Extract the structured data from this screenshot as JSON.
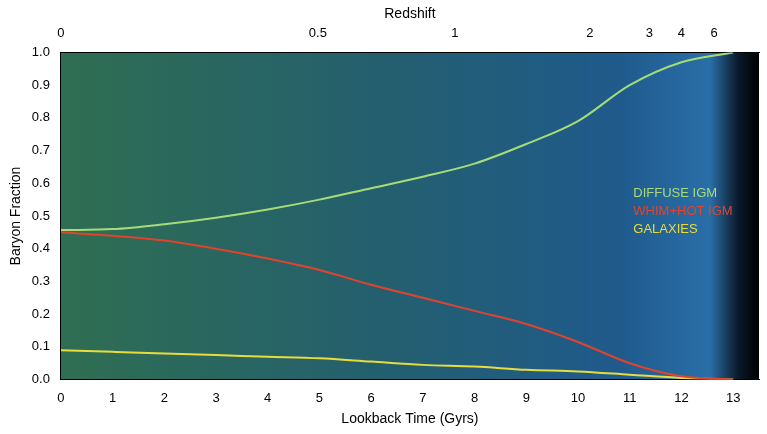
{
  "chart_data": {
    "type": "line",
    "x_title": "Lookback Time (Gyrs)",
    "y_title": "Baryon Fraction",
    "x": [
      0,
      1,
      2,
      3,
      4,
      5,
      6,
      7,
      8,
      9,
      10,
      11,
      12,
      13
    ],
    "series": [
      {
        "name": "DIFFUSE IGM",
        "color": "#a6dc78",
        "values": [
          0.457,
          0.46,
          0.475,
          0.495,
          0.52,
          0.55,
          0.585,
          0.62,
          0.66,
          0.72,
          0.79,
          0.9,
          0.97,
          1.0
        ]
      },
      {
        "name": "WHIM+HOT IGM",
        "color": "#e0442c",
        "values": [
          0.45,
          0.44,
          0.425,
          0.4,
          0.37,
          0.335,
          0.29,
          0.25,
          0.21,
          0.17,
          0.115,
          0.05,
          0.01,
          0.0
        ]
      },
      {
        "name": "GALAXIES",
        "color": "#e8dc3c",
        "values": [
          0.09,
          0.085,
          0.08,
          0.075,
          0.07,
          0.065,
          0.055,
          0.045,
          0.04,
          0.03,
          0.025,
          0.015,
          0.005,
          0.0
        ]
      }
    ],
    "xlim": [
      0,
      13.5
    ],
    "xticks": [
      0,
      1,
      2,
      3,
      4,
      5,
      6,
      7,
      8,
      9,
      10,
      11,
      12,
      13
    ],
    "ylim": [
      0,
      1
    ],
    "yticks": [
      {
        "value": 0,
        "label": "0.0"
      },
      0.1,
      0.2,
      0.3,
      0.4,
      0.5,
      0.6,
      0.7,
      0.8,
      0.9,
      {
        "value": 1,
        "label": "1.0"
      }
    ],
    "top_axis": {
      "title": "Redshift",
      "ticks": [
        {
          "value": 0,
          "label": "0"
        },
        {
          "value": 4.97,
          "label": "0.5"
        },
        {
          "value": 7.62,
          "label": "1"
        },
        {
          "value": 10.23,
          "label": "2"
        },
        {
          "value": 11.38,
          "label": "3"
        },
        {
          "value": 12.0,
          "label": "4"
        },
        {
          "value": 12.63,
          "label": "6"
        }
      ]
    },
    "grid": false,
    "legend": "right"
  }
}
